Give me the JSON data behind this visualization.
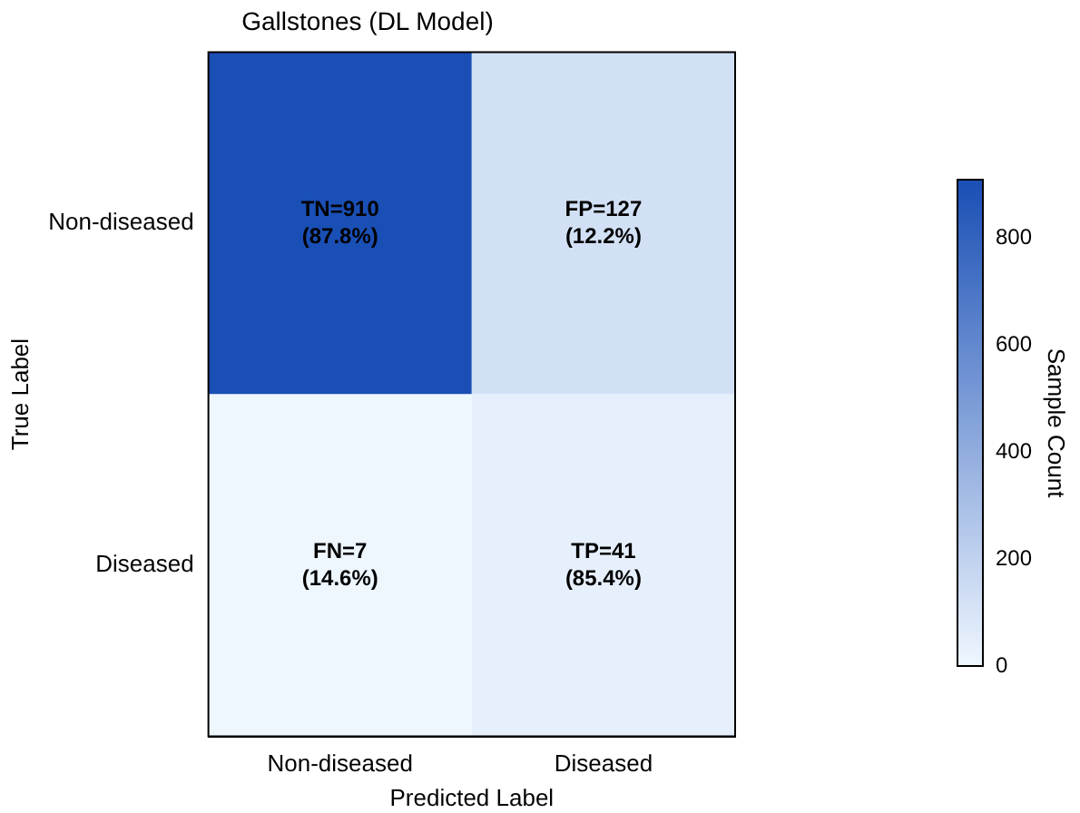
{
  "chart_data": {
    "type": "heatmap",
    "title": "Gallstones (DL Model)",
    "xlabel": "Predicted Label",
    "ylabel": "True Label",
    "clabel": "Sample Count",
    "categories": [
      "Non-diseased",
      "Diseased"
    ],
    "y_categories": [
      "Non-diseased",
      "Diseased"
    ],
    "cells": [
      [
        910,
        127
      ],
      [
        7,
        41
      ]
    ],
    "cell_labels": [
      [
        "TN=910\n(87.8%)",
        "FP=127\n(12.2%)"
      ],
      [
        "FN=7\n(14.6%)",
        "TP=41\n(85.4%)"
      ]
    ],
    "clim": [
      0,
      910
    ],
    "cticks": [
      0,
      200,
      400,
      600,
      800
    ]
  }
}
